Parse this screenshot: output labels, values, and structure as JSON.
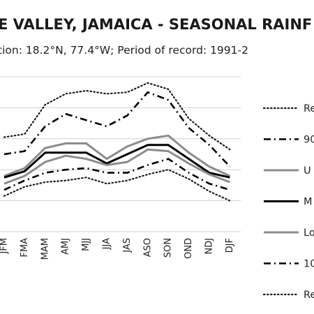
{
  "chart_data": {
    "type": "line",
    "title": "E VALLEY, JAMAICA - SEASONAL RAINF",
    "subtitle": "tion: 18.2°N, 77.4°W; Period of record: 1991-2",
    "xlabel": "",
    "ylabel": "",
    "categories": [
      "JFM",
      "FMA",
      "MAM",
      "AMJ",
      "MJJ",
      "JJA",
      "JAS",
      "ASO",
      "SON",
      "OND",
      "NDJ",
      "DJF"
    ],
    "ylim": [
      0,
      100
    ],
    "grid": true,
    "legend_position": "right",
    "series": [
      {
        "name": "Re",
        "style": "dotted",
        "color": "#1a1a1a",
        "values": [
          61,
          63,
          82,
          89,
          91,
          89,
          90,
          96,
          92,
          73,
          62,
          53
        ]
      },
      {
        "name": "90",
        "style": "dashdot",
        "color": "#000000",
        "values": [
          50,
          52,
          68,
          76,
          72,
          68,
          75,
          90,
          85,
          67,
          56,
          42
        ]
      },
      {
        "name": "U",
        "style": "solid-gray",
        "color": "#8c8c8c",
        "values": [
          36,
          41,
          54,
          57,
          57,
          47,
          55,
          60,
          62,
          51,
          42,
          36
        ]
      },
      {
        "name": "M",
        "style": "solid-black",
        "color": "#000000",
        "values": [
          35,
          39,
          51,
          51,
          51,
          44,
          50,
          56,
          56,
          47,
          38,
          35
        ]
      },
      {
        "name": "Lo",
        "style": "solid-gray",
        "color": "#8c8c8c",
        "values": [
          31,
          36,
          45,
          49,
          47,
          43,
          45,
          53,
          52,
          44,
          37,
          32
        ]
      },
      {
        "name": "10",
        "style": "dashdot",
        "color": "#000000",
        "values": [
          27,
          33,
          38,
          40,
          41,
          38,
          38,
          43,
          47,
          38,
          31,
          27
        ]
      },
      {
        "name": "Re",
        "style": "dotted",
        "color": "#1a1a1a",
        "values": [
          23,
          29,
          32,
          33,
          35,
          31,
          33,
          37,
          40,
          34,
          26,
          20
        ]
      }
    ]
  }
}
